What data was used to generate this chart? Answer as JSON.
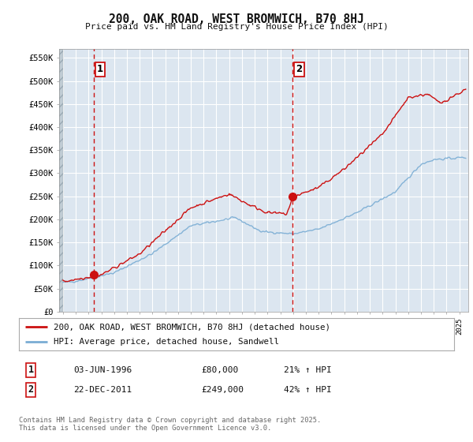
{
  "title": "200, OAK ROAD, WEST BROMWICH, B70 8HJ",
  "subtitle": "Price paid vs. HM Land Registry's House Price Index (HPI)",
  "ylim": [
    0,
    570000
  ],
  "yticks": [
    0,
    50000,
    100000,
    150000,
    200000,
    250000,
    300000,
    350000,
    400000,
    450000,
    500000,
    550000
  ],
  "ytick_labels": [
    "£0",
    "£50K",
    "£100K",
    "£150K",
    "£200K",
    "£250K",
    "£300K",
    "£350K",
    "£400K",
    "£450K",
    "£500K",
    "£550K"
  ],
  "hpi_color": "#7aadd4",
  "price_color": "#cc1111",
  "marker1_x": 1996.42,
  "marker1_y": 80000,
  "marker2_x": 2011.97,
  "marker2_y": 249000,
  "vline1_x": 1996.42,
  "vline2_x": 2011.97,
  "legend_label1": "200, OAK ROAD, WEST BROMWICH, B70 8HJ (detached house)",
  "legend_label2": "HPI: Average price, detached house, Sandwell",
  "table_row1_num": "1",
  "table_row1_date": "03-JUN-1996",
  "table_row1_price": "£80,000",
  "table_row1_hpi": "21% ↑ HPI",
  "table_row2_num": "2",
  "table_row2_date": "22-DEC-2011",
  "table_row2_price": "£249,000",
  "table_row2_hpi": "42% ↑ HPI",
  "footnote": "Contains HM Land Registry data © Crown copyright and database right 2025.\nThis data is licensed under the Open Government Licence v3.0.",
  "bg_color": "#ffffff",
  "plot_bg_color": "#dce6f0",
  "grid_color": "#ffffff",
  "hatch_color": "#b8c4cc",
  "xmin": 1993.7,
  "xmax": 2025.7
}
